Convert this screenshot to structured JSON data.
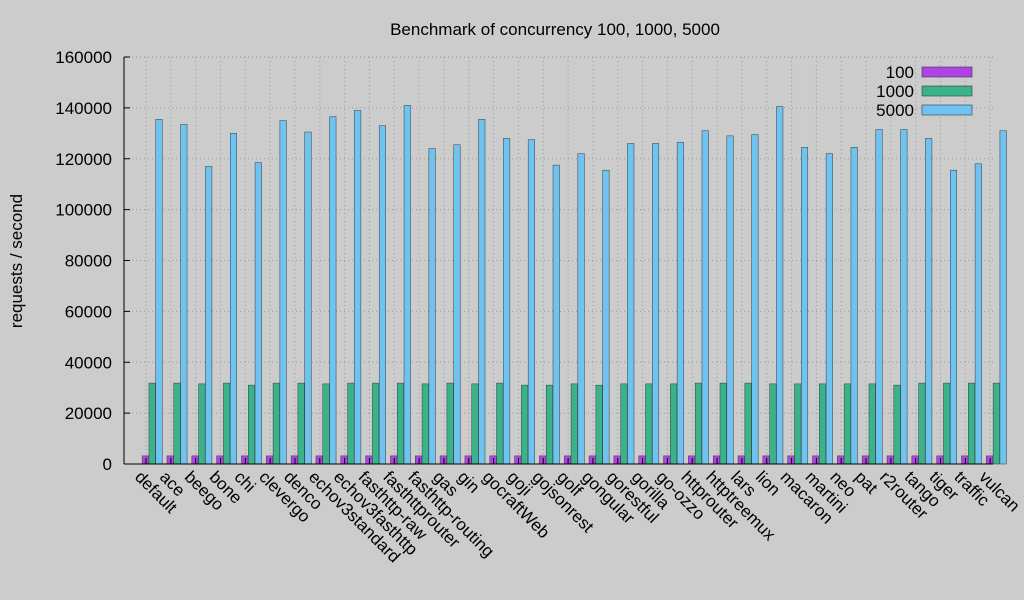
{
  "chart_data": {
    "type": "bar",
    "title": "Benchmark of concurrency 100, 1000, 5000",
    "xlabel": "",
    "ylabel": "requests / second",
    "ylim": [
      0,
      160000
    ],
    "yticks": [
      0,
      20000,
      40000,
      60000,
      80000,
      100000,
      120000,
      140000,
      160000
    ],
    "grid": true,
    "legend_position": "top-right",
    "categories": [
      "default",
      "ace",
      "beego",
      "bone",
      "chi",
      "clevergo",
      "denco",
      "echov3standard",
      "echov3fasthttp",
      "fasthttp-raw",
      "fasthttprouter",
      "fasthttp-routing",
      "gas",
      "gin",
      "gocraftWeb",
      "goji",
      "gojsonrest",
      "golf",
      "gongular",
      "gorestful",
      "gorilla",
      "go-ozzo",
      "httprouter",
      "httptreemux",
      "lars",
      "lion",
      "macaron",
      "martini",
      "neo",
      "pat",
      "r2router",
      "tango",
      "tiger",
      "traffic",
      "vulcan"
    ],
    "series": [
      {
        "name": "100",
        "color": "#b043e6",
        "values": [
          3200,
          3200,
          3200,
          3200,
          3200,
          3200,
          3200,
          3200,
          3200,
          3200,
          3200,
          3200,
          3200,
          3200,
          3200,
          3200,
          3200,
          3200,
          3200,
          3200,
          3200,
          3200,
          3200,
          3200,
          3200,
          3200,
          3200,
          3200,
          3200,
          3200,
          3200,
          3200,
          3200,
          3200,
          3200
        ]
      },
      {
        "name": "1000",
        "color": "#3ab38a",
        "values": [
          31800,
          31800,
          31500,
          31800,
          31000,
          31800,
          31800,
          31500,
          31800,
          31800,
          31800,
          31500,
          31800,
          31500,
          31800,
          31000,
          31000,
          31500,
          31000,
          31500,
          31500,
          31500,
          31800,
          31800,
          31800,
          31500,
          31500,
          31500,
          31500,
          31500,
          31000,
          31800,
          31800,
          31800,
          31800
        ]
      },
      {
        "name": "5000",
        "color": "#6ec3f0",
        "values": [
          135500,
          133500,
          117000,
          130000,
          118500,
          135000,
          130500,
          136500,
          139000,
          133000,
          141000,
          124000,
          125500,
          135500,
          128000,
          127500,
          117500,
          122000,
          115500,
          126000,
          126000,
          126500,
          131000,
          129000,
          129500,
          140500,
          124500,
          122000,
          124500,
          131500,
          131500,
          128000,
          115500,
          118000,
          131000
        ]
      }
    ]
  }
}
